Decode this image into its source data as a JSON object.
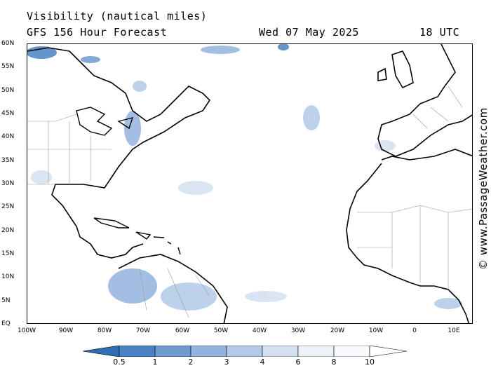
{
  "header": {
    "title": "Visibility (nautical miles)",
    "model": "GFS 156 Hour Forecast",
    "date": "Wed 07 May 2025",
    "time": "18 UTC"
  },
  "watermark": "© www.PassageWeather.com",
  "map": {
    "lat_labels": [
      "60N",
      "55N",
      "50N",
      "45N",
      "40N",
      "35N",
      "30N",
      "25N",
      "20N",
      "15N",
      "10N",
      "5N",
      "EQ"
    ],
    "lon_labels": [
      "100W",
      "90W",
      "80W",
      "70W",
      "60W",
      "50W",
      "40W",
      "30W",
      "20W",
      "10W",
      "0",
      "10E"
    ],
    "lon_range": [
      -100,
      15
    ],
    "lat_range": [
      0,
      60
    ],
    "land_color": "#ffffff",
    "coast_color": "#000000",
    "border_color": "#999999"
  },
  "legend": {
    "values": [
      "0.5",
      "1",
      "2",
      "3",
      "4",
      "6",
      "8",
      "10"
    ],
    "colors": [
      "#2f6db5",
      "#4a83c4",
      "#6f9bd1",
      "#93b3dd",
      "#b3c9e7",
      "#d3e0f1",
      "#edf2f9",
      "#ffffff"
    ]
  }
}
